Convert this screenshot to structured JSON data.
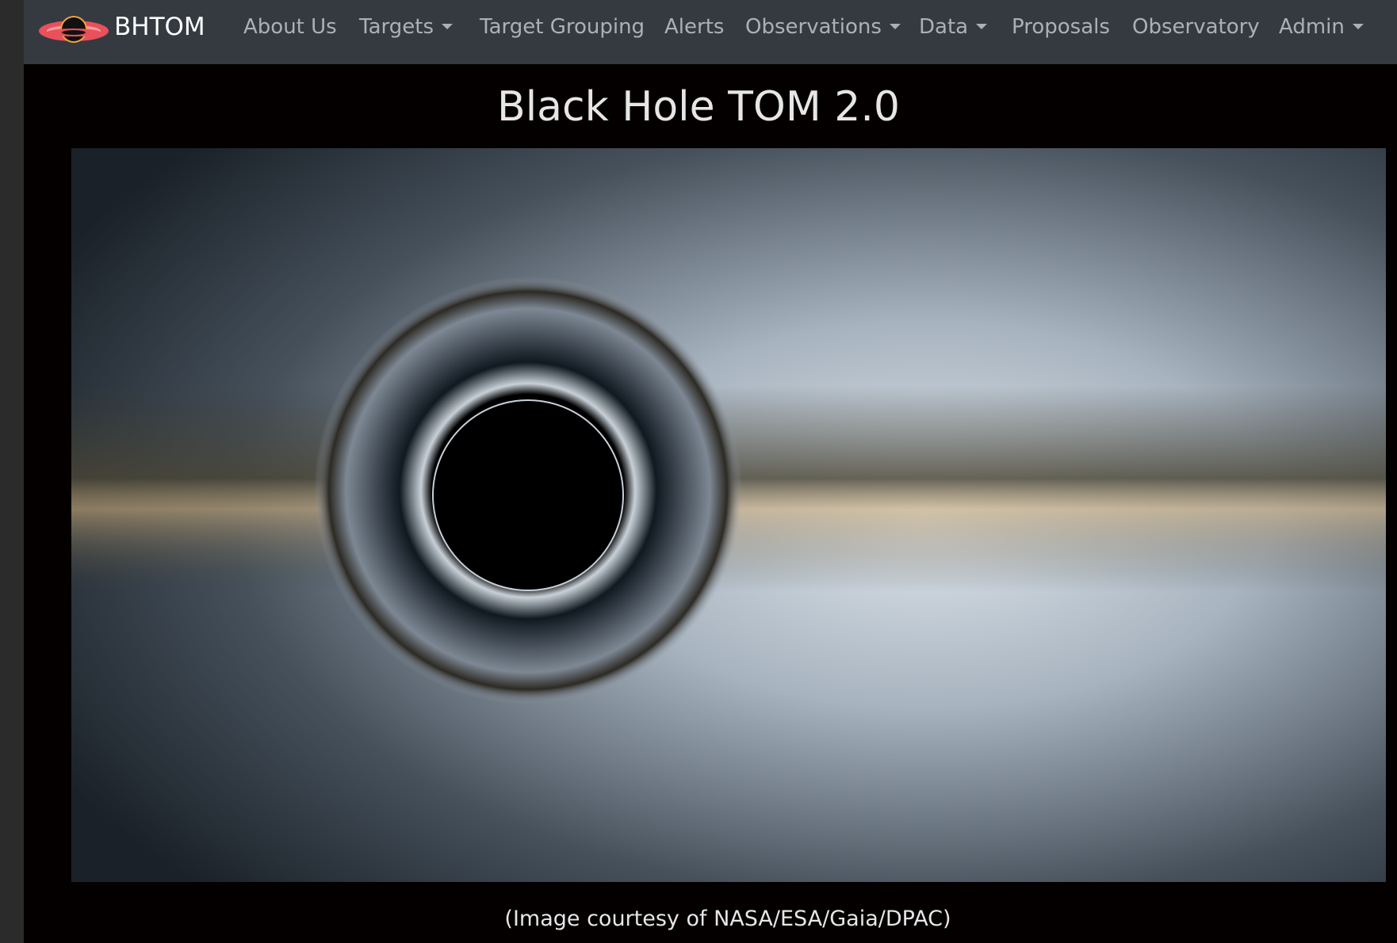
{
  "navbar": {
    "brand": "BHTOM",
    "items": [
      "About Us",
      "Targets",
      "Target Grouping",
      "Alerts",
      "Observations",
      "Data",
      "Proposals",
      "Observatory",
      "Admin"
    ]
  },
  "main": {
    "title": "Black Hole TOM 2.0",
    "caption": "(Image courtesy of NASA/ESA/Gaia/DPAC)"
  }
}
